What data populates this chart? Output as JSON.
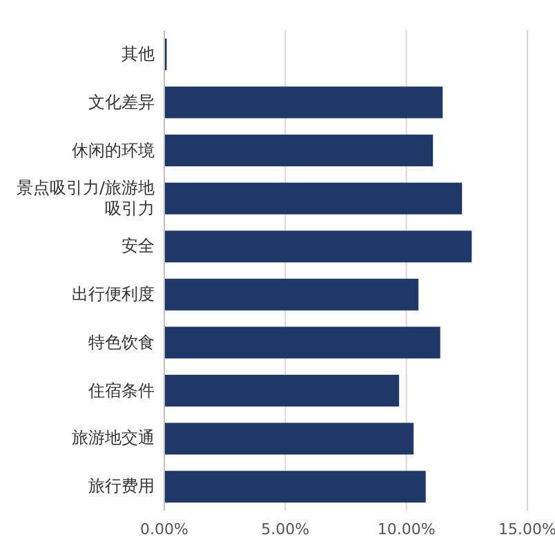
{
  "chart_data": {
    "type": "bar",
    "orientation": "horizontal",
    "categories": [
      "其他",
      "文化差异",
      "休闲的环境",
      "景点吸引力/旅游地吸引力",
      "安全",
      "出行便利度",
      "特色饮食",
      "住宿条件",
      "旅游地交通",
      "旅行费用"
    ],
    "values": [
      0.1,
      11.5,
      11.1,
      12.3,
      12.7,
      10.5,
      11.4,
      9.7,
      10.3,
      10.8
    ],
    "color": "#1f3868",
    "xlim": [
      0,
      15
    ],
    "xticks": [
      {
        "value": 0,
        "label": "0.00%"
      },
      {
        "value": 5,
        "label": "5.00%"
      },
      {
        "value": 10,
        "label": "10.00%"
      },
      {
        "value": 15,
        "label": "15.00%"
      }
    ],
    "grid": "x"
  }
}
